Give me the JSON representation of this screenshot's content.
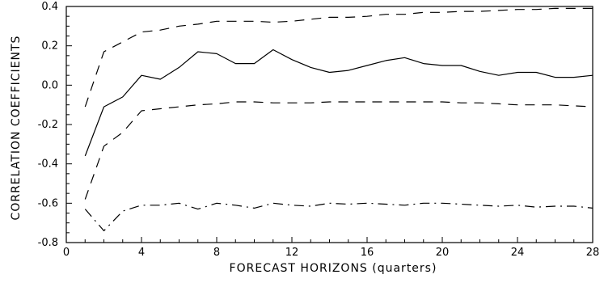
{
  "chart_data": {
    "type": "line",
    "title": "",
    "xlabel": "FORECAST HORIZONS (quarters)",
    "ylabel": "CORRELATION COEFFICIENTS",
    "xlim": [
      0,
      28
    ],
    "ylim": [
      -0.8,
      0.4
    ],
    "x_ticks": [
      0,
      4,
      8,
      12,
      16,
      20,
      24,
      28
    ],
    "x_tick_labels": [
      "0",
      "4",
      "8",
      "12",
      "16",
      "20",
      "24",
      "28"
    ],
    "y_ticks": [
      -0.8,
      -0.6,
      -0.4,
      -0.2,
      0.0,
      0.2,
      0.4
    ],
    "y_tick_labels": [
      "-0.8",
      "-0.6",
      "-0.4",
      "-0.2",
      "0.0",
      "0.2",
      "0.4"
    ],
    "grid": false,
    "legend": "none",
    "x": [
      1,
      2,
      3,
      4,
      5,
      6,
      7,
      8,
      9,
      10,
      11,
      12,
      13,
      14,
      15,
      16,
      17,
      18,
      19,
      20,
      21,
      22,
      23,
      24,
      25,
      26,
      27,
      28
    ],
    "series": [
      {
        "style": "solid",
        "values": [
          -0.36,
          -0.11,
          -0.06,
          0.05,
          0.03,
          0.09,
          0.17,
          0.16,
          0.11,
          0.11,
          0.18,
          0.13,
          0.09,
          0.065,
          0.075,
          0.1,
          0.125,
          0.14,
          0.11,
          0.1,
          0.1,
          0.07,
          0.05,
          0.065,
          0.065,
          0.04,
          0.04,
          0.05
        ]
      },
      {
        "style": "dashed",
        "values": [
          -0.11,
          0.17,
          0.22,
          0.27,
          0.28,
          0.3,
          0.31,
          0.325,
          0.325,
          0.325,
          0.32,
          0.325,
          0.335,
          0.345,
          0.345,
          0.35,
          0.36,
          0.36,
          0.37,
          0.37,
          0.375,
          0.375,
          0.38,
          0.385,
          0.385,
          0.39,
          0.39,
          0.39
        ]
      },
      {
        "style": "dashed",
        "values": [
          -0.58,
          -0.31,
          -0.24,
          -0.13,
          -0.12,
          -0.11,
          -0.1,
          -0.095,
          -0.085,
          -0.085,
          -0.09,
          -0.09,
          -0.09,
          -0.085,
          -0.085,
          -0.085,
          -0.085,
          -0.085,
          -0.085,
          -0.085,
          -0.09,
          -0.09,
          -0.095,
          -0.1,
          -0.1,
          -0.1,
          -0.105,
          -0.11
        ]
      },
      {
        "style": "dash-dot",
        "values": [
          -0.63,
          -0.74,
          -0.64,
          -0.61,
          -0.61,
          -0.6,
          -0.63,
          -0.6,
          -0.61,
          -0.625,
          -0.6,
          -0.61,
          -0.615,
          -0.6,
          -0.605,
          -0.6,
          -0.605,
          -0.61,
          -0.6,
          -0.6,
          -0.605,
          -0.61,
          -0.615,
          -0.61,
          -0.62,
          -0.615,
          -0.615,
          -0.625
        ]
      }
    ],
    "colors": {
      "line": "#000000",
      "background": "#ffffff"
    }
  }
}
